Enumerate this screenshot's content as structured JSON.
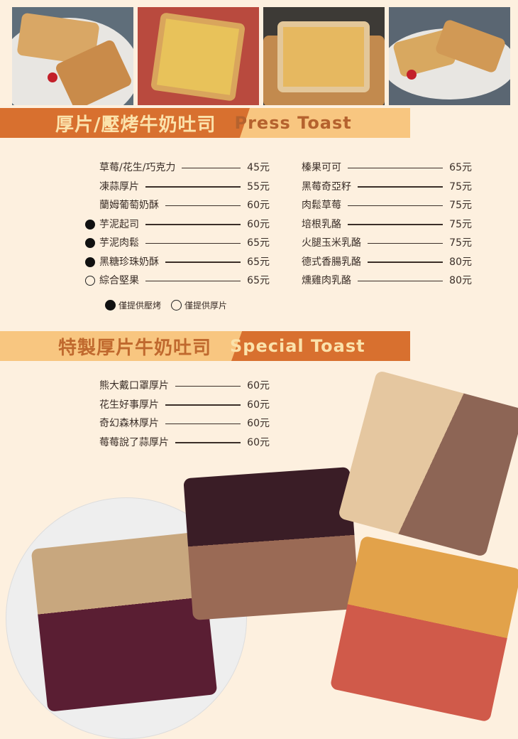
{
  "press": {
    "title_zh": "厚片/壓烤牛奶吐司",
    "title_en": "Press Toast",
    "left": [
      {
        "name": "草莓/花生/巧克力",
        "price": "45元",
        "mark": ""
      },
      {
        "name": "凍蒜厚片",
        "price": "55元",
        "mark": ""
      },
      {
        "name": "蘭姆葡萄奶酥",
        "price": "60元",
        "mark": ""
      },
      {
        "name": "芋泥起司",
        "price": "60元",
        "mark": "filled"
      },
      {
        "name": "芋泥肉鬆",
        "price": "65元",
        "mark": "filled"
      },
      {
        "name": "黑糖珍珠奶酥",
        "price": "65元",
        "mark": "filled"
      },
      {
        "name": "綜合堅果",
        "price": "65元",
        "mark": "open"
      }
    ],
    "right": [
      {
        "name": "榛果可可",
        "price": "65元"
      },
      {
        "name": "黑莓奇亞籽",
        "price": "75元"
      },
      {
        "name": "肉鬆草莓",
        "price": "75元"
      },
      {
        "name": "培根乳酪",
        "price": "75元"
      },
      {
        "name": "火腿玉米乳酪",
        "price": "75元"
      },
      {
        "name": "德式香腸乳酪",
        "price": "80元"
      },
      {
        "name": "燻雞肉乳酪",
        "price": "80元"
      }
    ],
    "legend": {
      "filled": "僅提供壓烤",
      "open": "僅提供厚片"
    }
  },
  "special": {
    "title_zh": "特製厚片牛奶吐司",
    "title_en": "Special Toast",
    "items": [
      {
        "name": "熊大戴口罩厚片",
        "price": "60元"
      },
      {
        "name": "花生好事厚片",
        "price": "60元"
      },
      {
        "name": "奇幻森林厚片",
        "price": "60元"
      },
      {
        "name": "莓莓說了蒜厚片",
        "price": "60元"
      }
    ]
  },
  "colors": {
    "background": "#fdf0df",
    "accent_dark": "#d8702f",
    "accent_light": "#f8c680"
  }
}
